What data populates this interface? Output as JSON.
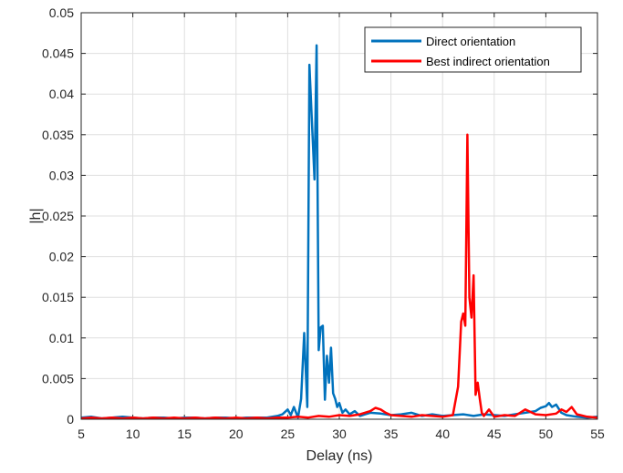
{
  "chart_data": {
    "type": "line",
    "xlabel": "Delay (ns)",
    "ylabel": "|h|",
    "xlim": [
      5,
      55
    ],
    "ylim": [
      0,
      0.05
    ],
    "xticks": [
      5,
      10,
      15,
      20,
      25,
      30,
      35,
      40,
      45,
      50,
      55
    ],
    "xtick_labels": [
      "5",
      "10",
      "15",
      "20",
      "25",
      "30",
      "35",
      "40",
      "45",
      "50",
      "55"
    ],
    "yticks": [
      0,
      0.005,
      0.01,
      0.015,
      0.02,
      0.025,
      0.03,
      0.035,
      0.04,
      0.045,
      0.05
    ],
    "ytick_labels": [
      "0",
      "0.005",
      "0.01",
      "0.015",
      "0.02",
      "0.025",
      "0.03",
      "0.035",
      "0.04",
      "0.045",
      "0.05"
    ],
    "grid": true,
    "legend_position": "top-right",
    "series": [
      {
        "name": "Direct orientation",
        "color": "#0072BD",
        "x": [
          5,
          6,
          7,
          8,
          9,
          10,
          11,
          12,
          13,
          14,
          15,
          16,
          17,
          18,
          19,
          20,
          21,
          22,
          23,
          24,
          24.5,
          25,
          25.3,
          25.6,
          26,
          26.3,
          26.6,
          26.9,
          27.1,
          27.3,
          27.6,
          27.8,
          28.0,
          28.2,
          28.4,
          28.6,
          28.8,
          29.0,
          29.2,
          29.4,
          29.6,
          29.8,
          30.0,
          30.3,
          30.6,
          31,
          31.5,
          32,
          32.5,
          33,
          34,
          35,
          36,
          37,
          38,
          39,
          40,
          41,
          42,
          43,
          44,
          45,
          46,
          47,
          48,
          49,
          49.5,
          50,
          50.3,
          50.6,
          51,
          51.5,
          52,
          53,
          54,
          55
        ],
        "y": [
          0.0002,
          0.0003,
          0.0001,
          0.0002,
          0.0003,
          0.0002,
          0.0001,
          0.0002,
          0.0002,
          0.0001,
          0.0002,
          0.0002,
          0.0001,
          0.0002,
          0.0002,
          0.0001,
          0.0002,
          0.0002,
          0.0002,
          0.0004,
          0.0006,
          0.0012,
          0.0005,
          0.0015,
          0.0002,
          0.0025,
          0.0106,
          0.0015,
          0.0436,
          0.038,
          0.0295,
          0.046,
          0.0085,
          0.0113,
          0.0115,
          0.0024,
          0.0078,
          0.0045,
          0.0088,
          0.0032,
          0.0025,
          0.0015,
          0.002,
          0.0008,
          0.0012,
          0.0006,
          0.001,
          0.0004,
          0.0006,
          0.0008,
          0.0007,
          0.0005,
          0.0006,
          0.0008,
          0.0004,
          0.0006,
          0.0004,
          0.0005,
          0.0006,
          0.0004,
          0.0006,
          0.0005,
          0.0004,
          0.0006,
          0.0008,
          0.001,
          0.0014,
          0.0016,
          0.002,
          0.0015,
          0.0018,
          0.0008,
          0.0005,
          0.0003,
          0.0002,
          0.0003
        ]
      },
      {
        "name": "Best indirect orientation",
        "color": "#FF0000",
        "x": [
          5,
          6,
          7,
          8,
          9,
          10,
          11,
          12,
          13,
          14,
          15,
          16,
          17,
          18,
          19,
          20,
          21,
          22,
          23,
          24,
          25,
          26,
          27,
          28,
          29,
          30,
          31,
          32,
          33,
          33.5,
          34,
          34.5,
          35,
          36,
          37,
          38,
          39,
          40,
          41,
          41.5,
          41.8,
          42.0,
          42.2,
          42.4,
          42.6,
          42.8,
          43.0,
          43.2,
          43.4,
          43.6,
          43.8,
          44,
          44.5,
          45,
          46,
          47,
          47.5,
          48,
          49,
          50,
          51,
          51.5,
          52,
          52.5,
          53,
          54,
          55
        ],
        "y": [
          0.0001,
          0.0002,
          0.0001,
          0.0002,
          0.0001,
          0.0002,
          0.0001,
          0.0002,
          0.0001,
          0.0002,
          0.0001,
          0.0002,
          0.0001,
          0.0002,
          0.0001,
          0.0002,
          0.0001,
          0.0002,
          0.0001,
          0.0002,
          0.0002,
          0.0003,
          0.0002,
          0.0004,
          0.0003,
          0.0005,
          0.0004,
          0.0006,
          0.001,
          0.0014,
          0.0012,
          0.0008,
          0.0005,
          0.0004,
          0.0003,
          0.0005,
          0.0004,
          0.0003,
          0.0005,
          0.004,
          0.012,
          0.013,
          0.0115,
          0.035,
          0.015,
          0.0125,
          0.0177,
          0.003,
          0.0045,
          0.0025,
          0.0008,
          0.0004,
          0.0012,
          0.0003,
          0.0005,
          0.0004,
          0.0008,
          0.0012,
          0.0006,
          0.0005,
          0.0007,
          0.0012,
          0.0009,
          0.0015,
          0.0006,
          0.0003,
          0.0002
        ]
      }
    ]
  }
}
